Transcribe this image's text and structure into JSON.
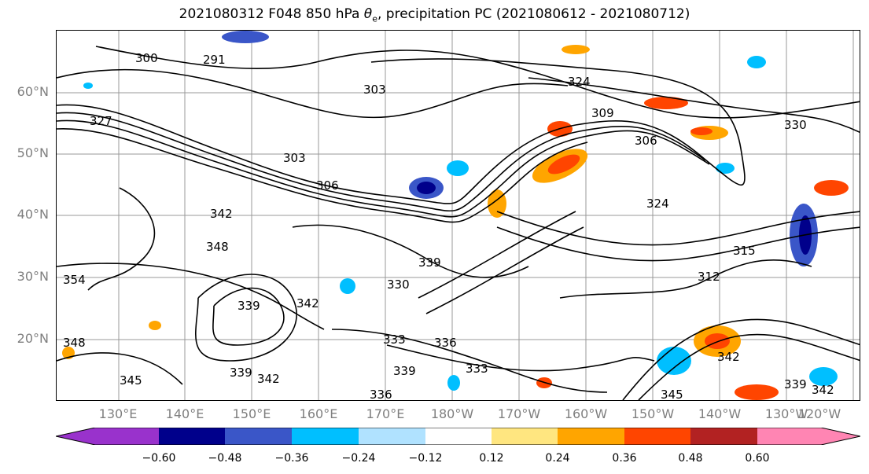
{
  "title_prefix": "2021080312 F048 850 hPa ",
  "title_symbol": "θ",
  "title_sub": "e",
  "title_suffix": ", precipitation PC (2021080612 - 2021080712)",
  "lat_labels": [
    "60°N",
    "50°N",
    "40°N",
    "30°N",
    "20°N"
  ],
  "lon_labels": [
    "130°E",
    "140°E",
    "150°E",
    "160°E",
    "170°E",
    "180°W",
    "170°W",
    "160°W",
    "150°W",
    "140°W",
    "130°W",
    "120°W"
  ],
  "contour_labels": [
    "291",
    "300",
    "303",
    "324",
    "309",
    "306",
    "330",
    "327",
    "303",
    "306",
    "324",
    "315",
    "342",
    "339",
    "330",
    "312",
    "333",
    "339",
    "342",
    "348",
    "354",
    "348",
    "345",
    "342",
    "336",
    "339",
    "336",
    "333",
    "345",
    "339",
    "342",
    "339",
    "342"
  ],
  "colorbar": {
    "colors": [
      "#9932cc",
      "#00008b",
      "#3a56c8",
      "#00bfff",
      "#b0e2ff",
      "#ffffff",
      "#ffe680",
      "#ffa500",
      "#ff4500",
      "#b22222",
      "#ff85b3"
    ],
    "ticks": [
      "−0.60",
      "−0.48",
      "−0.36",
      "−0.24",
      "−0.12",
      "0.12",
      "0.24",
      "0.36",
      "0.48",
      "0.60"
    ]
  }
}
